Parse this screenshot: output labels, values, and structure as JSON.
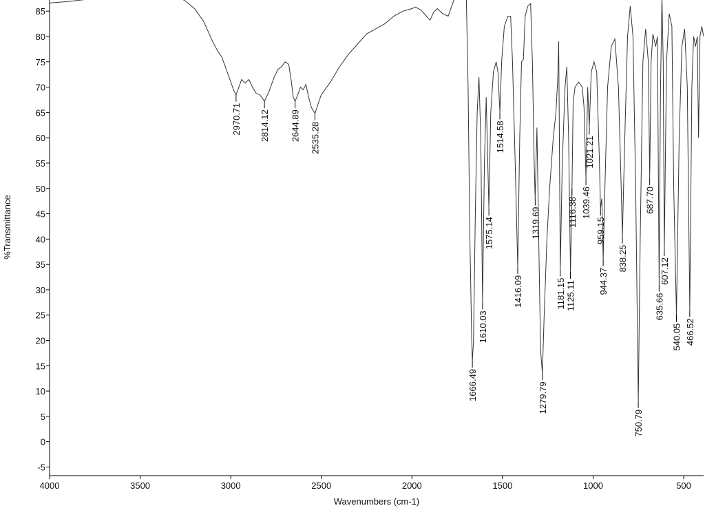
{
  "chart_data": {
    "type": "line",
    "xlabel": "Wavenumbers (cm-1)",
    "ylabel": "%Transmittance",
    "xlim": [
      4000,
      390
    ],
    "ylim": [
      -6.7,
      87.2
    ],
    "xticks": [
      4000,
      3500,
      3000,
      2500,
      2000,
      1500,
      1000,
      500
    ],
    "yticks": [
      -5,
      0,
      5,
      10,
      15,
      20,
      25,
      30,
      35,
      40,
      45,
      50,
      55,
      60,
      65,
      70,
      75,
      80,
      85
    ],
    "color": "#333333",
    "x": [
      4000,
      3900,
      3800,
      3750,
      3300,
      3250,
      3200,
      3150,
      3100,
      3070,
      3050,
      3030,
      3000,
      2985,
      2970.71,
      2955,
      2940,
      2920,
      2900,
      2880,
      2860,
      2840,
      2825,
      2814.12,
      2790,
      2760,
      2740,
      2720,
      2700,
      2680,
      2665,
      2655,
      2644.89,
      2630,
      2615,
      2600,
      2585,
      2570,
      2555,
      2535.28,
      2515,
      2500,
      2450,
      2400,
      2350,
      2300,
      2250,
      2200,
      2150,
      2100,
      2050,
      2000,
      1980,
      1950,
      1920,
      1900,
      1880,
      1860,
      1830,
      1800,
      1780,
      1760,
      1720,
      1700,
      1690,
      1680,
      1670,
      1666.49,
      1660,
      1650,
      1640,
      1630,
      1620,
      1610.03,
      1600,
      1590,
      1575.14,
      1565,
      1550,
      1535,
      1525,
      1514.58,
      1505,
      1490,
      1470,
      1455,
      1445,
      1430,
      1416.09,
      1405,
      1395,
      1385,
      1375,
      1360,
      1345,
      1335,
      1325,
      1319.69,
      1310,
      1300,
      1290,
      1279.79,
      1270,
      1255,
      1240,
      1220,
      1205,
      1195,
      1190,
      1181.15,
      1170,
      1155,
      1145,
      1135,
      1125.11,
      1116.38,
      1110,
      1100,
      1080,
      1060,
      1050,
      1039.46,
      1030,
      1021.21,
      1010,
      995,
      980,
      965,
      959.15,
      952,
      944.37,
      935,
      920,
      900,
      880,
      860,
      845,
      838.25,
      825,
      810,
      795,
      780,
      765,
      750.79,
      740,
      725,
      710,
      695,
      687.7,
      680,
      670,
      655,
      645,
      635.66,
      628,
      620,
      613,
      607.12,
      595,
      580,
      565,
      555,
      540.05,
      525,
      510,
      495,
      480,
      466.52,
      455,
      445,
      435,
      425,
      418,
      410,
      400,
      390
    ],
    "y": [
      86.6,
      86.9,
      87.3,
      88,
      88,
      87,
      85.5,
      83,
      79,
      77,
      76,
      74,
      71,
      69.5,
      68.5,
      70,
      71.5,
      70.8,
      71.5,
      70,
      68.8,
      68.5,
      67.8,
      67.2,
      69,
      72,
      73.5,
      74,
      75,
      74.5,
      71,
      68,
      67.2,
      68.5,
      70,
      69.5,
      70.5,
      68,
      66,
      64.8,
      67,
      68.5,
      71,
      74,
      76.5,
      78.5,
      80.5,
      81.5,
      82.5,
      84,
      85,
      85.5,
      85.8,
      85.2,
      84,
      83.2,
      84.8,
      85.5,
      84.5,
      84,
      86,
      88,
      90,
      88,
      70,
      40,
      20,
      16,
      20,
      45,
      65,
      72,
      60,
      27.5,
      55,
      68,
      46,
      65,
      73,
      75,
      73,
      65,
      75,
      82,
      84,
      84,
      75,
      55,
      34.5,
      60,
      75,
      75.5,
      84,
      86,
      86.5,
      75,
      55,
      48,
      62,
      40,
      18,
      13.5,
      25,
      40,
      50,
      60,
      65,
      72,
      79,
      34,
      55,
      70,
      74,
      60,
      33.5,
      50,
      67,
      70,
      71,
      70,
      66,
      52,
      70,
      62,
      73,
      75,
      73,
      55,
      46,
      48,
      36,
      50,
      70,
      78,
      79.5,
      70,
      50,
      40.5,
      60,
      80,
      86,
      80,
      50,
      8,
      40,
      75,
      81.5,
      75,
      52,
      75,
      80.5,
      78,
      80,
      31,
      70,
      88,
      75,
      38,
      75,
      84.5,
      82,
      50,
      25,
      60,
      78,
      81.5,
      70,
      26,
      70,
      80,
      78,
      80,
      60,
      80,
      82,
      80
    ],
    "peaks": [
      {
        "value": 2970.71,
        "label": "2970.71",
        "y": 68.5
      },
      {
        "value": 2814.12,
        "label": "2814.12",
        "y": 67.2
      },
      {
        "value": 2644.89,
        "label": "2644.89",
        "y": 67.2
      },
      {
        "value": 2535.28,
        "label": "2535.28",
        "y": 64.8
      },
      {
        "value": 1666.49,
        "label": "1666.49",
        "y": 16
      },
      {
        "value": 1610.03,
        "label": "1610.03",
        "y": 27.5
      },
      {
        "value": 1575.14,
        "label": "1575.14",
        "y": 46
      },
      {
        "value": 1514.58,
        "label": "1514.58",
        "y": 65
      },
      {
        "value": 1416.09,
        "label": "1416.09",
        "y": 34.5
      },
      {
        "value": 1319.69,
        "label": "1319.69",
        "y": 48
      },
      {
        "value": 1279.79,
        "label": "1279.79",
        "y": 13.5
      },
      {
        "value": 1181.15,
        "label": "1181.15",
        "y": 34
      },
      {
        "value": 1125.11,
        "label": "1125.11",
        "y": 33.5
      },
      {
        "value": 1116.38,
        "label": "1116.38",
        "y": 50
      },
      {
        "value": 1039.46,
        "label": "1039.46",
        "y": 52
      },
      {
        "value": 1021.21,
        "label": "1021.21",
        "y": 62
      },
      {
        "value": 959.15,
        "label": "959.15",
        "y": 46
      },
      {
        "value": 944.37,
        "label": "944.37",
        "y": 36
      },
      {
        "value": 838.25,
        "label": "838.25",
        "y": 40.5
      },
      {
        "value": 750.79,
        "label": "750.79",
        "y": 8
      },
      {
        "value": 687.7,
        "label": "687.70",
        "y": 52
      },
      {
        "value": 635.66,
        "label": "635.66",
        "y": 31
      },
      {
        "value": 607.12,
        "label": "607.12",
        "y": 38
      },
      {
        "value": 540.05,
        "label": "540.05",
        "y": 25
      },
      {
        "value": 466.52,
        "label": "466.52",
        "y": 26
      }
    ]
  }
}
